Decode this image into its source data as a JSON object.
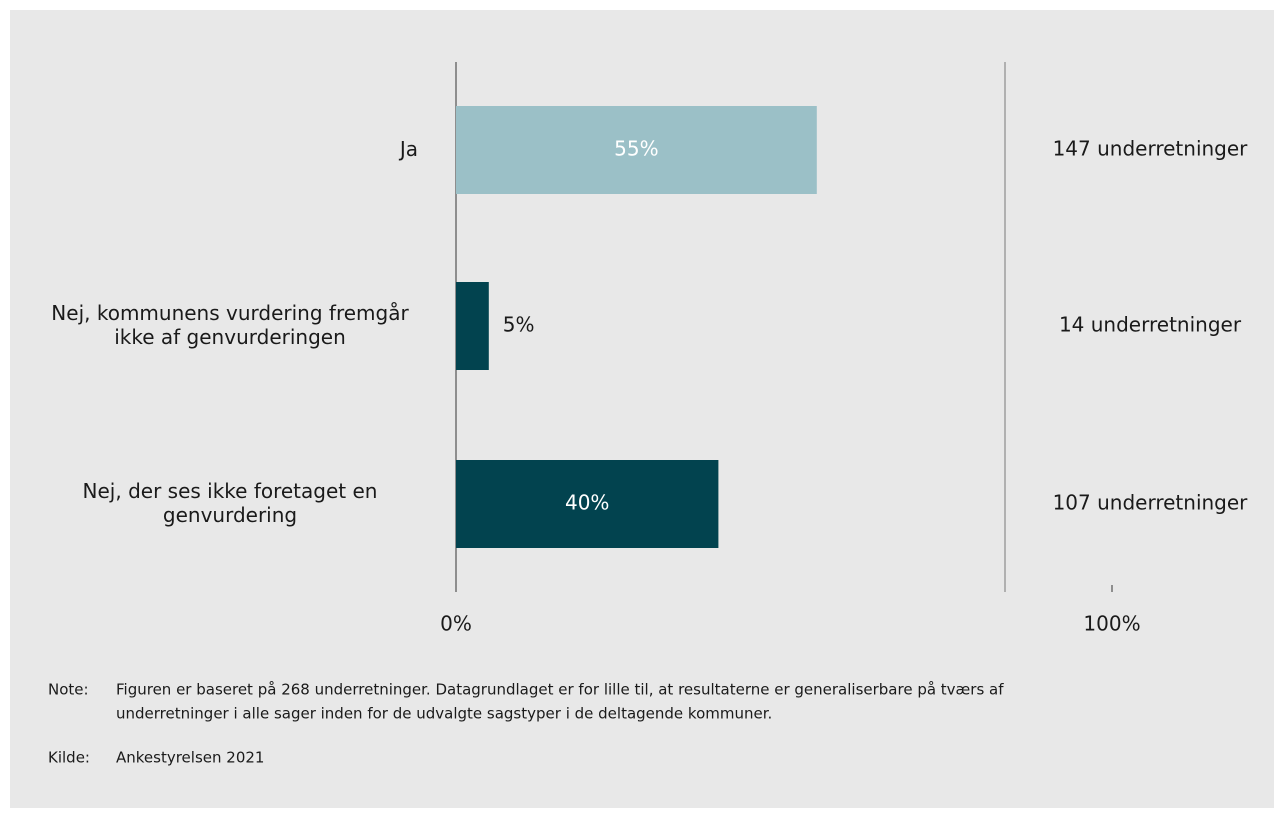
{
  "chart_data": {
    "type": "barh",
    "categories": [
      "Ja",
      "Nej, kommunens vurdering fremgår\nikke af genvurderingen",
      "Nej, der ses ikke foretaget en\ngenvurdering"
    ],
    "values": [
      55,
      5,
      40
    ],
    "value_labels": [
      "55%",
      "5%",
      "40%"
    ],
    "colors": [
      "#9bc0c7",
      "#02434f",
      "#02434f"
    ],
    "annotations": [
      "147 underretninger",
      "14 underretninger",
      "107 underretninger"
    ],
    "xlim": [
      0,
      100
    ],
    "xticks": [
      {
        "value": 0,
        "label": "0%"
      },
      {
        "value": 100,
        "label": "100%"
      }
    ]
  },
  "note_label": "Note:",
  "note": [
    "Figuren er baseret på 268 underretninger. Datagrundlaget er for lille til, at resultaterne er generaliserbare på tværs af",
    "underretninger i alle sager inden for de udvalgte sagstyper i de deltagende kommuner."
  ],
  "source_label": "Kilde:",
  "source": "Ankestyrelsen 2021"
}
